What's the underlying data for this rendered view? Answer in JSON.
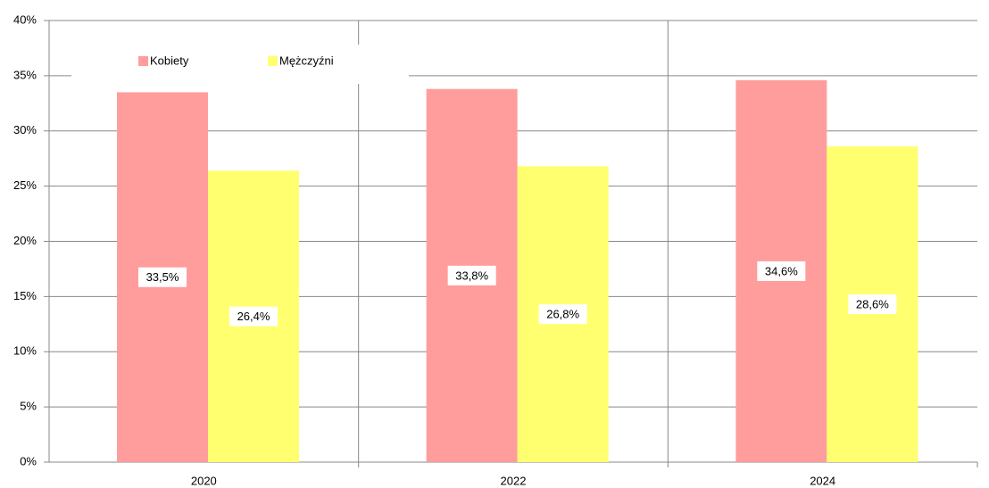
{
  "chart_data": {
    "type": "bar",
    "categories": [
      "2020",
      "2022",
      "2024"
    ],
    "series": [
      {
        "name": "Kobiety",
        "color": "#ff9d9d",
        "values": [
          33.5,
          33.8,
          34.6
        ],
        "value_labels": [
          "33,5%",
          "33,8%",
          "34,6%"
        ]
      },
      {
        "name": "Mężczyźni",
        "color": "#ffff70",
        "values": [
          26.4,
          26.8,
          28.6
        ],
        "value_labels": [
          "26,4%",
          "26,8%",
          "28,6%"
        ]
      }
    ],
    "ylim": [
      0,
      40
    ],
    "yticks": [
      {
        "value": 0,
        "label": "0%"
      },
      {
        "value": 5,
        "label": "5%"
      },
      {
        "value": 10,
        "label": "10%"
      },
      {
        "value": 15,
        "label": "15%"
      },
      {
        "value": 20,
        "label": "20%"
      },
      {
        "value": 25,
        "label": "25%"
      },
      {
        "value": 30,
        "label": "30%"
      },
      {
        "value": 35,
        "label": "35%"
      },
      {
        "value": 40,
        "label": "40%"
      }
    ],
    "grid": true,
    "legend": "top-left"
  }
}
